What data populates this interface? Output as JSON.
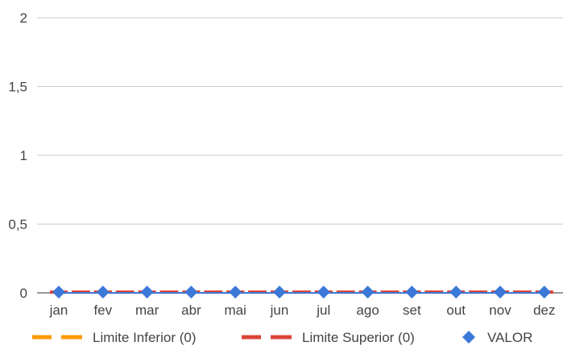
{
  "chart_data": {
    "type": "line",
    "categories": [
      "jan",
      "fev",
      "mar",
      "abr",
      "mai",
      "jun",
      "jul",
      "ago",
      "set",
      "out",
      "nov",
      "dez"
    ],
    "ylim": [
      0,
      2
    ],
    "yticks": [
      0,
      0.5,
      1,
      1.5,
      2
    ],
    "ytick_labels": [
      "0",
      "0,5",
      "1",
      "1,5",
      "2"
    ],
    "grid": true,
    "legend_position": "bottom",
    "series": [
      {
        "name": "Limite Inferior (0)",
        "style": "dashed",
        "color": "#ff9900",
        "values": [
          0,
          0,
          0,
          0,
          0,
          0,
          0,
          0,
          0,
          0,
          0,
          0
        ]
      },
      {
        "name": "Limite Superior (0)",
        "style": "dashed",
        "color": "#db4437",
        "values": [
          0,
          0,
          0,
          0,
          0,
          0,
          0,
          0,
          0,
          0,
          0,
          0
        ]
      },
      {
        "name": "VALOR",
        "style": "diamond-markers",
        "color": "#3c78d8",
        "values": [
          0,
          0,
          0,
          0,
          0,
          0,
          0,
          0,
          0,
          0,
          0,
          0
        ]
      }
    ]
  }
}
